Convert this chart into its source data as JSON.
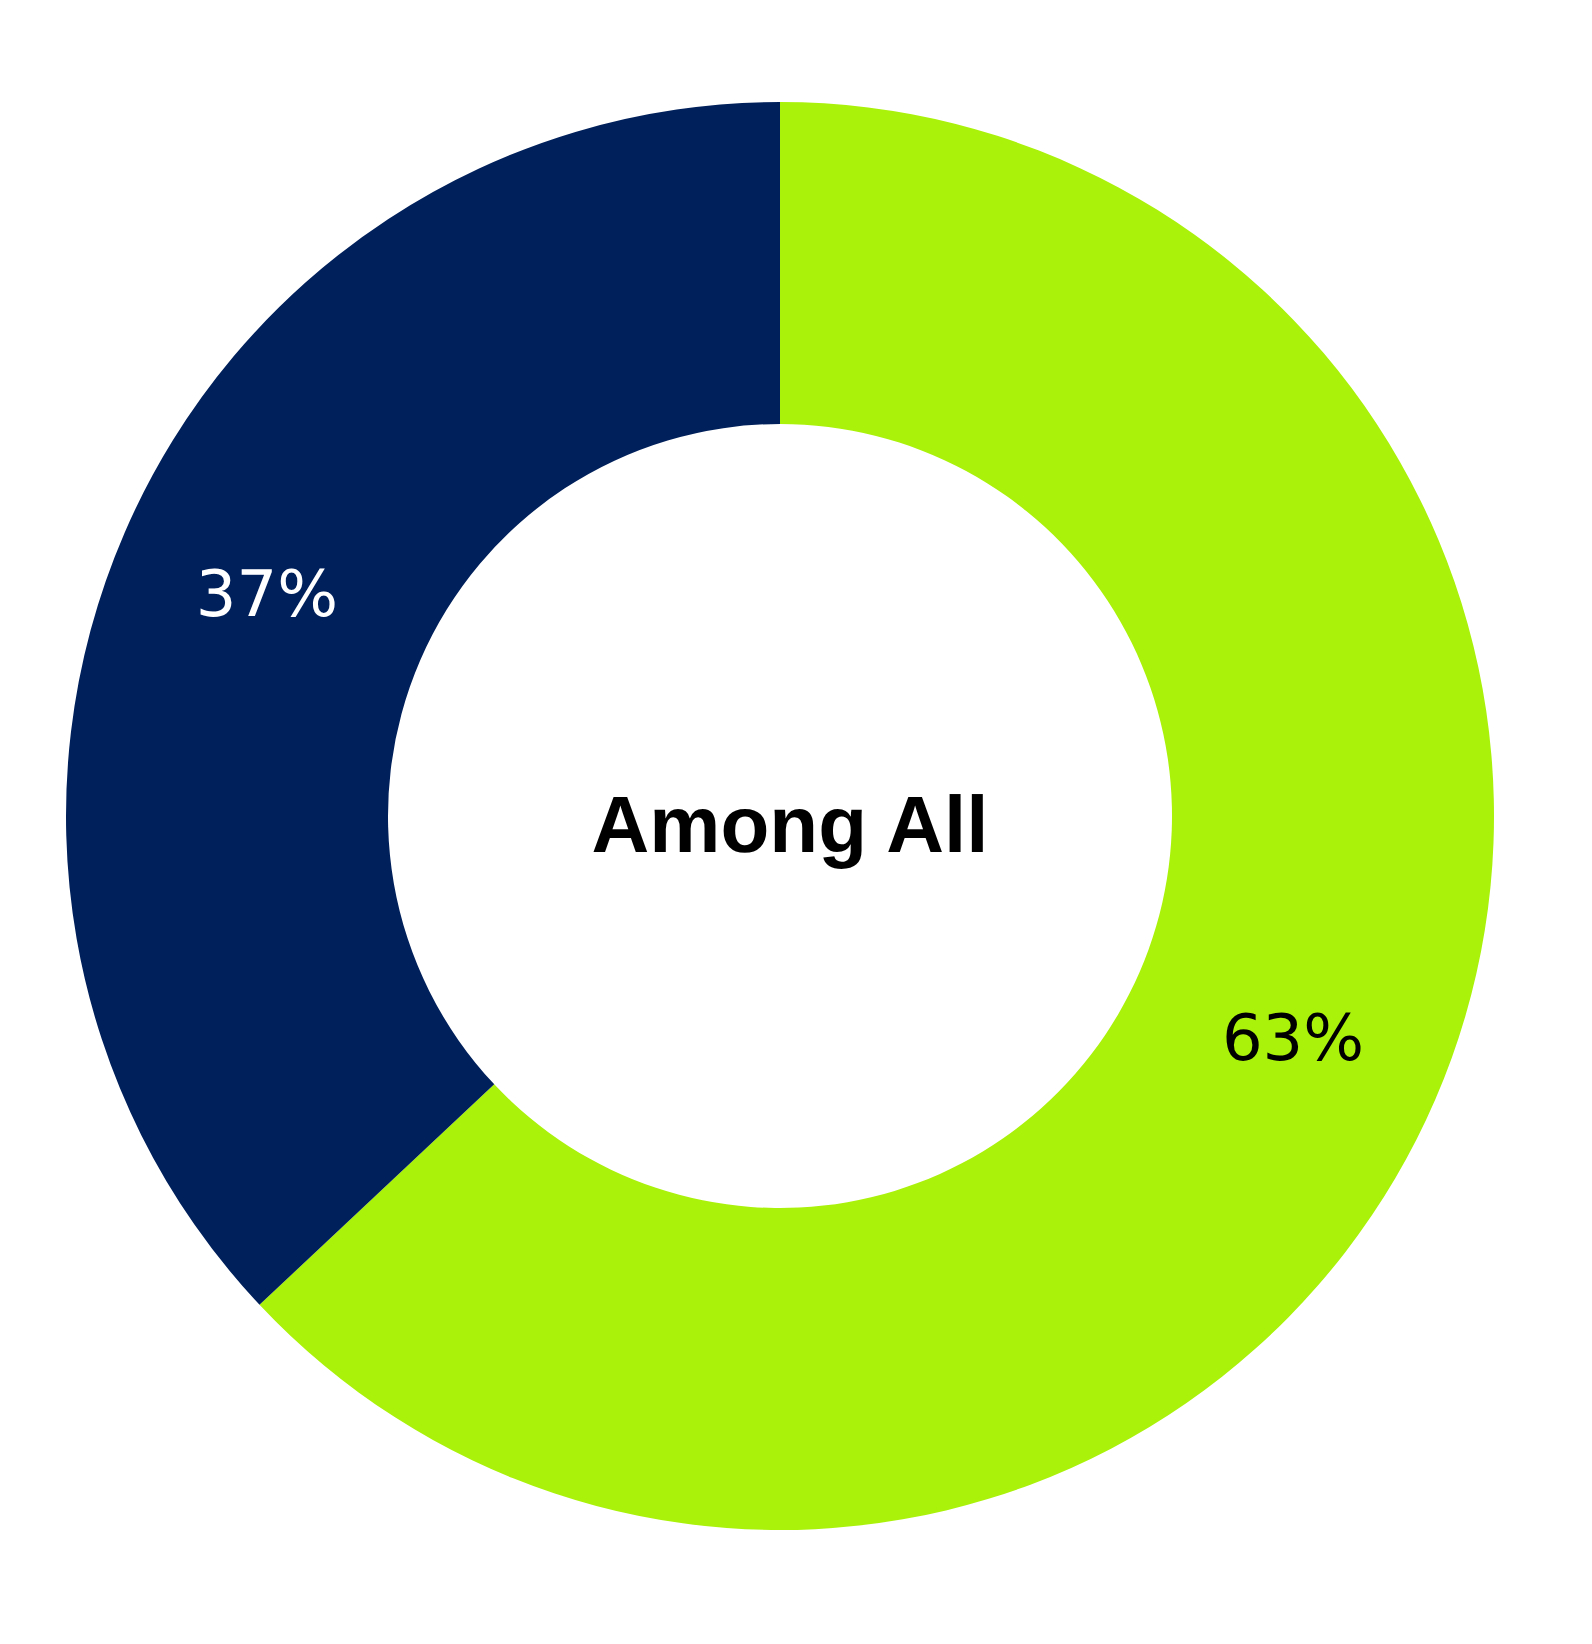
{
  "chart_data": {
    "type": "donut",
    "title": "Among All",
    "categories": [
      null,
      null
    ],
    "values": [
      63,
      37
    ],
    "colors": [
      "#aaf20a",
      "#00205b"
    ],
    "value_labels": [
      "63%",
      "37%"
    ]
  }
}
